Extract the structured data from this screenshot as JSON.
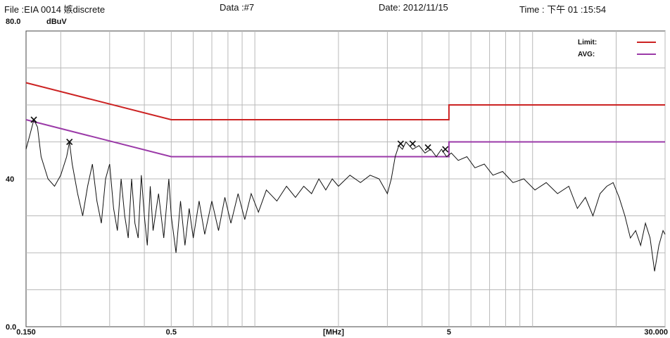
{
  "header": {
    "file": "File  :EIA 0014 嫉discrete",
    "data": "Data :#7",
    "date": "Date: 2012/11/15",
    "time": "Time : 下午  01 :15:54"
  },
  "chart_data": {
    "type": "line",
    "title": "",
    "xlabel": "[MHz]",
    "ylabel": "dBuV",
    "x_scale": "log",
    "xlim": [
      0.15,
      30
    ],
    "ylim": [
      0,
      80
    ],
    "grid": true,
    "legend_position": "top-right",
    "y_tick_labels": [
      "80.0",
      "40",
      "0.0"
    ],
    "y_tick_values": [
      80,
      40,
      0
    ],
    "x_tick_labels": [
      "0.150",
      "0.5",
      "5",
      "30.000"
    ],
    "x_tick_values": [
      0.15,
      0.5,
      5,
      30
    ],
    "colors": {
      "limit": "#cc2222",
      "avg": "#9b3aa8",
      "trace": "#111111",
      "grid": "#b9b9b9",
      "frame": "#444444"
    },
    "series": [
      {
        "name": "Limit:",
        "color": "#cc2222",
        "points": [
          [
            0.15,
            66
          ],
          [
            0.5,
            56
          ],
          [
            5,
            56
          ],
          [
            5,
            60
          ],
          [
            30,
            60
          ]
        ]
      },
      {
        "name": "AVG:",
        "color": "#9b3aa8",
        "points": [
          [
            0.15,
            56
          ],
          [
            0.5,
            46
          ],
          [
            5,
            46
          ],
          [
            5,
            50
          ],
          [
            30,
            50
          ]
        ]
      },
      {
        "name": "",
        "color": "#111111",
        "points": [
          [
            0.15,
            48
          ],
          [
            0.155,
            52
          ],
          [
            0.16,
            56
          ],
          [
            0.165,
            54
          ],
          [
            0.17,
            46
          ],
          [
            0.18,
            40
          ],
          [
            0.19,
            38
          ],
          [
            0.2,
            41
          ],
          [
            0.21,
            46
          ],
          [
            0.215,
            50
          ],
          [
            0.22,
            44
          ],
          [
            0.23,
            36
          ],
          [
            0.24,
            30
          ],
          [
            0.25,
            38
          ],
          [
            0.26,
            44
          ],
          [
            0.27,
            34
          ],
          [
            0.28,
            28
          ],
          [
            0.29,
            40
          ],
          [
            0.3,
            44
          ],
          [
            0.31,
            32
          ],
          [
            0.32,
            26
          ],
          [
            0.33,
            40
          ],
          [
            0.34,
            30
          ],
          [
            0.35,
            24
          ],
          [
            0.36,
            40
          ],
          [
            0.37,
            28
          ],
          [
            0.38,
            24
          ],
          [
            0.39,
            41
          ],
          [
            0.4,
            30
          ],
          [
            0.41,
            22
          ],
          [
            0.42,
            38
          ],
          [
            0.43,
            26
          ],
          [
            0.45,
            36
          ],
          [
            0.47,
            24
          ],
          [
            0.49,
            40
          ],
          [
            0.5,
            30
          ],
          [
            0.52,
            20
          ],
          [
            0.54,
            34
          ],
          [
            0.56,
            22
          ],
          [
            0.58,
            32
          ],
          [
            0.6,
            24
          ],
          [
            0.63,
            34
          ],
          [
            0.66,
            25
          ],
          [
            0.7,
            34
          ],
          [
            0.74,
            26
          ],
          [
            0.78,
            35
          ],
          [
            0.82,
            28
          ],
          [
            0.87,
            36
          ],
          [
            0.92,
            29
          ],
          [
            0.97,
            36
          ],
          [
            1.03,
            31
          ],
          [
            1.1,
            37
          ],
          [
            1.2,
            34
          ],
          [
            1.3,
            38
          ],
          [
            1.4,
            35
          ],
          [
            1.5,
            38
          ],
          [
            1.6,
            36
          ],
          [
            1.7,
            40
          ],
          [
            1.8,
            37
          ],
          [
            1.9,
            40
          ],
          [
            2.0,
            38
          ],
          [
            2.2,
            41
          ],
          [
            2.4,
            39
          ],
          [
            2.6,
            41
          ],
          [
            2.8,
            40
          ],
          [
            3.0,
            36
          ],
          [
            3.1,
            40
          ],
          [
            3.2,
            46
          ],
          [
            3.3,
            49
          ],
          [
            3.4,
            48
          ],
          [
            3.5,
            50
          ],
          [
            3.7,
            48
          ],
          [
            3.9,
            49
          ],
          [
            4.1,
            47
          ],
          [
            4.3,
            48
          ],
          [
            4.5,
            46
          ],
          [
            4.7,
            48
          ],
          [
            4.9,
            46
          ],
          [
            5.1,
            47
          ],
          [
            5.4,
            45
          ],
          [
            5.8,
            46
          ],
          [
            6.2,
            43
          ],
          [
            6.7,
            44
          ],
          [
            7.2,
            41
          ],
          [
            7.8,
            42
          ],
          [
            8.5,
            39
          ],
          [
            9.3,
            40
          ],
          [
            10.2,
            37
          ],
          [
            11.2,
            39
          ],
          [
            12.3,
            36
          ],
          [
            13.5,
            38
          ],
          [
            14.5,
            32
          ],
          [
            15.5,
            35
          ],
          [
            16.5,
            30
          ],
          [
            17.5,
            36
          ],
          [
            18.5,
            38
          ],
          [
            19.5,
            39
          ],
          [
            20.5,
            35
          ],
          [
            21.5,
            30
          ],
          [
            22.5,
            24
          ],
          [
            23.5,
            26
          ],
          [
            24.5,
            22
          ],
          [
            25.5,
            28
          ],
          [
            26.5,
            24
          ],
          [
            27.5,
            15
          ],
          [
            28.5,
            22
          ],
          [
            29.5,
            26
          ],
          [
            30,
            25
          ]
        ]
      }
    ],
    "markers": [
      [
        0.16,
        56
      ],
      [
        0.215,
        50
      ],
      [
        3.35,
        49.5
      ],
      [
        3.7,
        49.5
      ],
      [
        4.2,
        48.5
      ],
      [
        4.85,
        48
      ]
    ]
  }
}
